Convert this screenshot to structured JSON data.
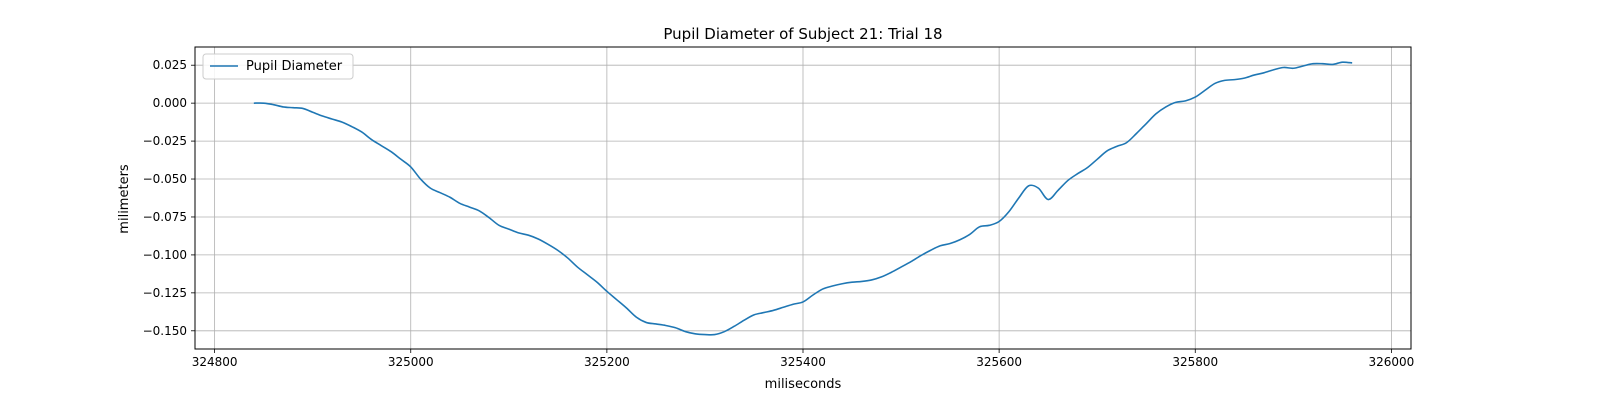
{
  "chart_data": {
    "type": "line",
    "title": "Pupil Diameter of Subject 21: Trial 18",
    "xlabel": "miliseconds",
    "ylabel": "milimeters",
    "xlim": [
      324780,
      326020
    ],
    "ylim": [
      -0.162,
      0.037
    ],
    "xticks": [
      324800,
      325000,
      325200,
      325400,
      325600,
      325800,
      326000
    ],
    "yticks": [
      0.025,
      0.0,
      -0.025,
      -0.05,
      -0.075,
      -0.1,
      -0.125,
      -0.15
    ],
    "ytick_labels": [
      "0.025",
      "0.000",
      "−0.025",
      "−0.050",
      "−0.075",
      "−0.100",
      "−0.125",
      "−0.150"
    ],
    "grid": true,
    "legend_position": "upper-left",
    "color": "#1f77b4",
    "series": [
      {
        "name": "Pupil Diameter",
        "x": [
          324840,
          324850,
          324860,
          324870,
          324880,
          324890,
          324900,
          324910,
          324920,
          324930,
          324940,
          324950,
          324960,
          324970,
          324980,
          324990,
          325000,
          325010,
          325020,
          325030,
          325040,
          325050,
          325060,
          325070,
          325080,
          325090,
          325100,
          325110,
          325120,
          325130,
          325140,
          325150,
          325160,
          325170,
          325180,
          325190,
          325200,
          325210,
          325220,
          325230,
          325240,
          325250,
          325260,
          325270,
          325280,
          325290,
          325300,
          325310,
          325320,
          325330,
          325340,
          325350,
          325360,
          325370,
          325380,
          325390,
          325400,
          325410,
          325420,
          325430,
          325440,
          325450,
          325460,
          325470,
          325480,
          325490,
          325500,
          325510,
          325520,
          325530,
          325540,
          325550,
          325560,
          325570,
          325580,
          325590,
          325600,
          325610,
          325620,
          325630,
          325640,
          325650,
          325660,
          325670,
          325680,
          325690,
          325700,
          325710,
          325720,
          325730,
          325740,
          325750,
          325760,
          325770,
          325780,
          325790,
          325800,
          325810,
          325820,
          325830,
          325840,
          325850,
          325860,
          325870,
          325880,
          325890,
          325900,
          325910,
          325920,
          325930,
          325940,
          325950,
          325960
        ],
        "y": [
          0.0,
          0.0,
          -0.001,
          -0.0025,
          -0.003,
          -0.0035,
          -0.006,
          -0.0085,
          -0.0105,
          -0.0125,
          -0.0155,
          -0.019,
          -0.024,
          -0.028,
          -0.032,
          -0.037,
          -0.042,
          -0.05,
          -0.056,
          -0.059,
          -0.062,
          -0.066,
          -0.0685,
          -0.071,
          -0.0755,
          -0.0805,
          -0.083,
          -0.0855,
          -0.087,
          -0.0895,
          -0.093,
          -0.097,
          -0.102,
          -0.108,
          -0.113,
          -0.118,
          -0.124,
          -0.1295,
          -0.135,
          -0.141,
          -0.1445,
          -0.1455,
          -0.1465,
          -0.148,
          -0.1505,
          -0.152,
          -0.1525,
          -0.1525,
          -0.1505,
          -0.147,
          -0.143,
          -0.1395,
          -0.138,
          -0.1365,
          -0.1345,
          -0.1325,
          -0.131,
          -0.1265,
          -0.1225,
          -0.1205,
          -0.119,
          -0.118,
          -0.1175,
          -0.1165,
          -0.1145,
          -0.1115,
          -0.108,
          -0.1045,
          -0.1005,
          -0.097,
          -0.094,
          -0.0925,
          -0.09,
          -0.0865,
          -0.0815,
          -0.0805,
          -0.078,
          -0.0715,
          -0.0625,
          -0.0545,
          -0.056,
          -0.0635,
          -0.0575,
          -0.051,
          -0.0465,
          -0.0425,
          -0.037,
          -0.0315,
          -0.0285,
          -0.026,
          -0.02,
          -0.0135,
          -0.007,
          -0.0025,
          0.0005,
          0.0015,
          0.004,
          0.0085,
          0.013,
          0.015,
          0.0155,
          0.0165,
          0.0185,
          0.02,
          0.022,
          0.0235,
          0.023,
          0.0245,
          0.026,
          0.026,
          0.0255,
          0.027,
          0.0265
        ]
      }
    ]
  }
}
